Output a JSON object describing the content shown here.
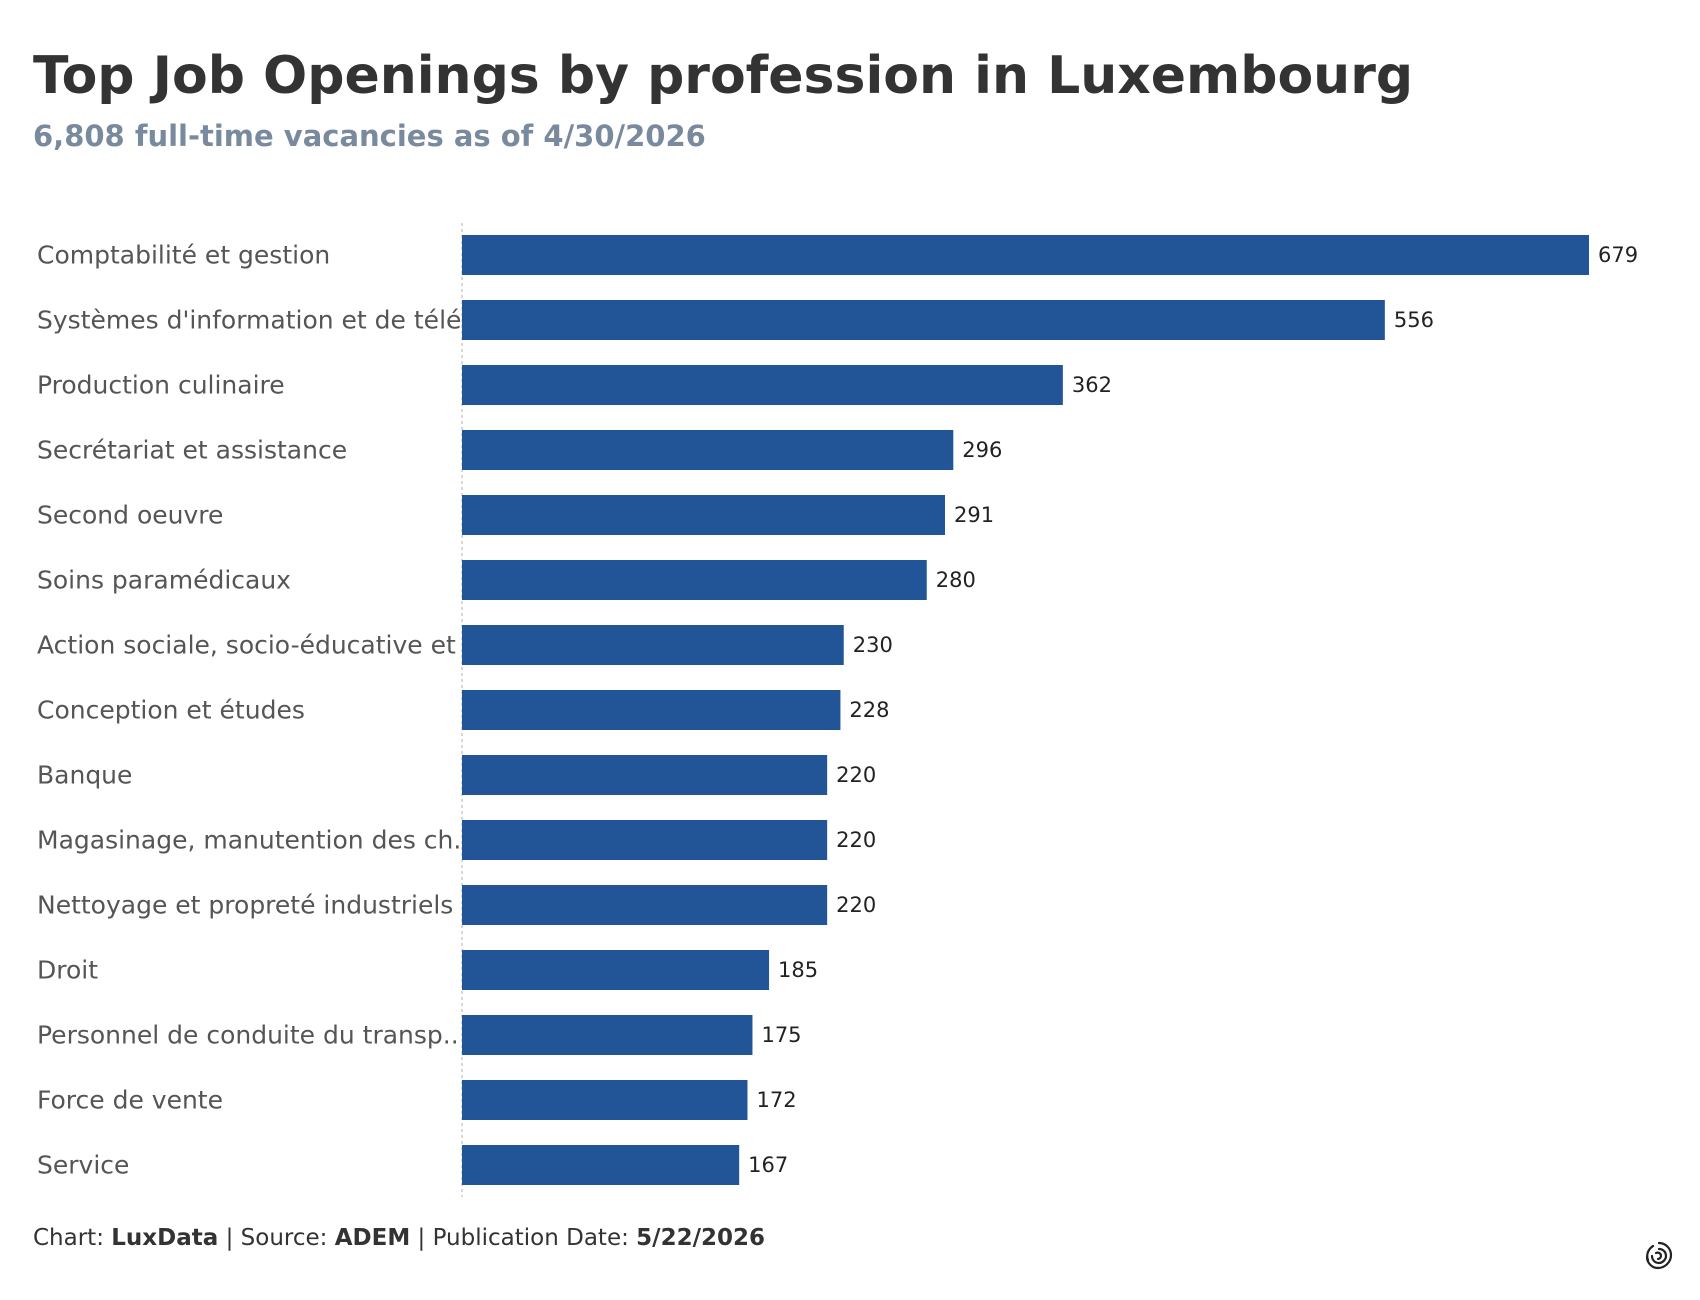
{
  "title": "Top Job Openings by profession in Luxembourg",
  "subtitle": "6,808 full-time vacancies as of 4/30/2026",
  "footer": {
    "chart_label": "Chart:",
    "chart_value": "LuxData",
    "separator": "|",
    "source_label": "Source:",
    "source_value": "ADEM",
    "pubdate_label": "Publication Date:",
    "pubdate_value": "5/22/2026"
  },
  "logo_icon": "spiral-logo-icon",
  "colors": {
    "bar": "#225597",
    "title": "#333333",
    "subtitle": "#7a8a9e",
    "category_text": "#555555",
    "axis_line": "#cccccc"
  },
  "chart_data": {
    "type": "bar",
    "orientation": "horizontal",
    "categories": [
      "Comptabilité et gestion",
      "Systèmes d'information et de télé..",
      "Production culinaire",
      "Secrétariat et assistance",
      "Second oeuvre",
      "Soins paramédicaux",
      "Action sociale, socio-éducative et ..",
      "Conception et études",
      "Banque",
      "Magasinage, manutention des ch..",
      "Nettoyage et propreté industriels",
      "Droit",
      "Personnel de conduite du transp..",
      "Force de vente",
      "Service"
    ],
    "values": [
      679,
      556,
      362,
      296,
      291,
      280,
      230,
      228,
      220,
      220,
      220,
      185,
      175,
      172,
      167
    ],
    "data_labels": [
      "679",
      "556",
      "362",
      "296",
      "291",
      "280",
      "230",
      "228",
      "220",
      "220",
      "220",
      "185",
      "175",
      "172",
      "167"
    ],
    "xlim": [
      0,
      679
    ],
    "grid": false,
    "legend": "none",
    "zero_line": "dotted"
  }
}
